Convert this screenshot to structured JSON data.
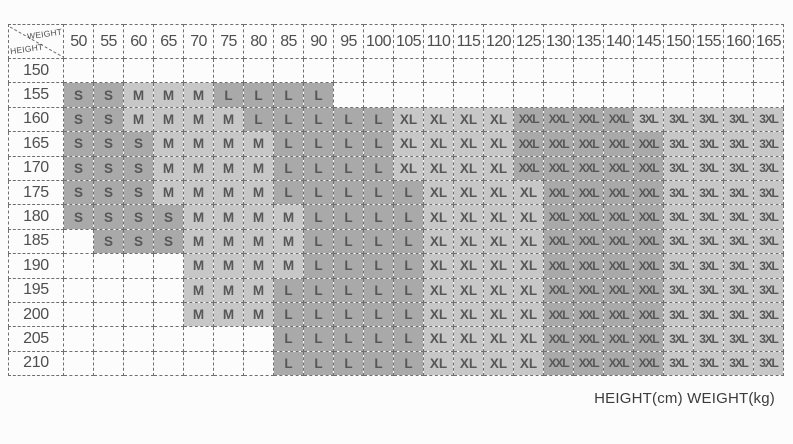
{
  "corner": {
    "weight_label": "WEIGHT",
    "height_label": "HEIGHT"
  },
  "caption": "HEIGHT(cm) WEIGHT(kg)",
  "colors": {
    "cell_dark": "#a9a9a9",
    "cell_light": "#c7c7c7",
    "border": "#6f6f6f",
    "text": "#4f4f4f"
  },
  "chart_data": {
    "type": "table",
    "title": "Size chart by height and weight",
    "columns_axis": "WEIGHT(kg)",
    "rows_axis": "HEIGHT(cm)",
    "legend_position": "none",
    "grid": "dashed",
    "weights": [
      "50",
      "55",
      "60",
      "65",
      "70",
      "75",
      "80",
      "85",
      "90",
      "95",
      "100",
      "105",
      "110",
      "115",
      "120",
      "125",
      "130",
      "135",
      "140",
      "145",
      "150",
      "155",
      "160",
      "165"
    ],
    "shade_map": {
      "S": "dark",
      "M": "light",
      "L": "dark",
      "XL": "light",
      "XXL": "dark",
      "3XL": "light"
    },
    "rows": [
      {
        "height": "150",
        "cells": [
          "",
          "",
          "",
          "",
          "",
          "",
          "",
          "",
          "",
          "",
          "",
          "",
          "",
          "",
          "",
          "",
          "",
          "",
          "",
          "",
          "",
          "",
          "",
          ""
        ]
      },
      {
        "height": "155",
        "cells": [
          "S",
          "S",
          "M",
          "M",
          "M",
          "L",
          "L",
          "L",
          "L",
          "",
          "",
          "",
          "",
          "",
          "",
          "",
          "",
          "",
          "",
          "",
          "",
          "",
          "",
          ""
        ]
      },
      {
        "height": "160",
        "cells": [
          "S",
          "S",
          "M",
          "M",
          "M",
          "M",
          "L",
          "L",
          "L",
          "L",
          "L",
          "XL",
          "XL",
          "XL",
          "XL",
          "XXL",
          "XXL",
          "XXL",
          "XXL",
          "3XL",
          "3XL",
          "3XL",
          "3XL",
          "3XL"
        ]
      },
      {
        "height": "165",
        "cells": [
          "S",
          "S",
          "S",
          "M",
          "M",
          "M",
          "M",
          "L",
          "L",
          "L",
          "L",
          "XL",
          "XL",
          "XL",
          "XL",
          "XXL",
          "XXL",
          "XXL",
          "XXL",
          "XXL",
          "3XL",
          "3XL",
          "3XL",
          "3XL"
        ]
      },
      {
        "height": "170",
        "cells": [
          "S",
          "S",
          "S",
          "M",
          "M",
          "M",
          "M",
          "L",
          "L",
          "L",
          "L",
          "XL",
          "XL",
          "XL",
          "XL",
          "XXL",
          "XXL",
          "XXL",
          "XXL",
          "XXL",
          "3XL",
          "3XL",
          "3XL",
          "3XL"
        ]
      },
      {
        "height": "175",
        "cells": [
          "S",
          "S",
          "S",
          "M",
          "M",
          "M",
          "M",
          "L",
          "L",
          "L",
          "L",
          "L",
          "XL",
          "XL",
          "XL",
          "XL",
          "XXL",
          "XXL",
          "XXL",
          "XXL",
          "3XL",
          "3XL",
          "3XL",
          "3XL"
        ]
      },
      {
        "height": "180",
        "cells": [
          "S",
          "S",
          "S",
          "S",
          "M",
          "M",
          "M",
          "M",
          "L",
          "L",
          "L",
          "L",
          "XL",
          "XL",
          "XL",
          "XL",
          "XXL",
          "XXL",
          "XXL",
          "XXL",
          "3XL",
          "3XL",
          "3XL",
          "3XL"
        ]
      },
      {
        "height": "185",
        "cells": [
          "",
          "S",
          "S",
          "S",
          "M",
          "M",
          "M",
          "M",
          "L",
          "L",
          "L",
          "L",
          "XL",
          "XL",
          "XL",
          "XL",
          "XXL",
          "XXL",
          "XXL",
          "XXL",
          "3XL",
          "3XL",
          "3XL",
          "3XL"
        ]
      },
      {
        "height": "190",
        "cells": [
          "",
          "",
          "",
          "",
          "M",
          "M",
          "M",
          "M",
          "L",
          "L",
          "L",
          "L",
          "XL",
          "XL",
          "XL",
          "XL",
          "XXL",
          "XXL",
          "XXL",
          "XXL",
          "3XL",
          "3XL",
          "3XL",
          "3XL"
        ]
      },
      {
        "height": "195",
        "cells": [
          "",
          "",
          "",
          "",
          "M",
          "M",
          "M",
          "L",
          "L",
          "L",
          "L",
          "L",
          "XL",
          "XL",
          "XL",
          "XL",
          "XXL",
          "XXL",
          "XXL",
          "XXL",
          "3XL",
          "3XL",
          "3XL",
          "3XL"
        ]
      },
      {
        "height": "200",
        "cells": [
          "",
          "",
          "",
          "",
          "M",
          "M",
          "M",
          "L",
          "L",
          "L",
          "L",
          "L",
          "XL",
          "XL",
          "XL",
          "XL",
          "XXL",
          "XXL",
          "XXL",
          "XXL",
          "3XL",
          "3XL",
          "3XL",
          "3XL"
        ]
      },
      {
        "height": "205",
        "cells": [
          "",
          "",
          "",
          "",
          "",
          "",
          "",
          "L",
          "L",
          "L",
          "L",
          "L",
          "XL",
          "XL",
          "XL",
          "XL",
          "XXL",
          "XXL",
          "XXL",
          "XXL",
          "3XL",
          "3XL",
          "3XL",
          "3XL"
        ]
      },
      {
        "height": "210",
        "cells": [
          "",
          "",
          "",
          "",
          "",
          "",
          "",
          "L",
          "L",
          "L",
          "L",
          "L",
          "XL",
          "XL",
          "XL",
          "XL",
          "XXL",
          "XXL",
          "XXL",
          "XXL",
          "3XL",
          "3XL",
          "3XL",
          "3XL"
        ]
      }
    ]
  }
}
